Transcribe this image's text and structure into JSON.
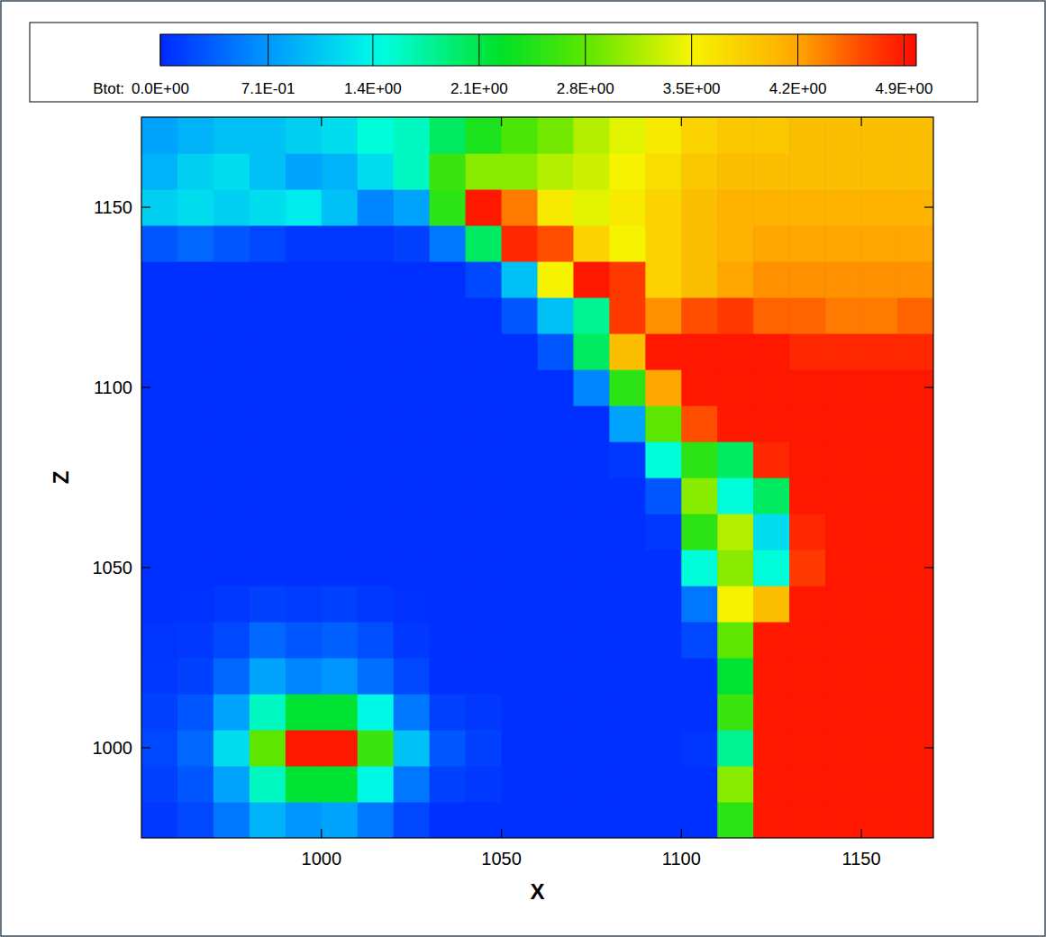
{
  "chart_data": {
    "type": "heatmap",
    "xlabel": "X",
    "ylabel": "Z",
    "xlim": [
      950,
      1170
    ],
    "ylim": [
      975,
      1175
    ],
    "xticks": [
      1000,
      1050,
      1100,
      1150
    ],
    "yticks": [
      1000,
      1050,
      1100,
      1150
    ],
    "x": [
      955,
      965,
      975,
      985,
      995,
      1005,
      1015,
      1025,
      1035,
      1045,
      1055,
      1065,
      1075,
      1085,
      1095,
      1105,
      1115,
      1125,
      1135,
      1145,
      1155,
      1165
    ],
    "y": [
      980,
      990,
      1000,
      1010,
      1020,
      1030,
      1040,
      1050,
      1060,
      1070,
      1080,
      1090,
      1100,
      1110,
      1120,
      1130,
      1140,
      1150,
      1160,
      1170
    ],
    "cells": [
      [
        0.1,
        0.2,
        0.5,
        0.9,
        0.7,
        0.8,
        0.5,
        0.2,
        0.05,
        0.05,
        0.05,
        0.05,
        0.05,
        0.05,
        0.05,
        0.05,
        2.5,
        4.9,
        4.9,
        4.9,
        4.9,
        4.9
      ],
      [
        0.15,
        0.3,
        0.8,
        1.6,
        2.2,
        2.2,
        1.4,
        0.5,
        0.15,
        0.1,
        0.05,
        0.05,
        0.05,
        0.05,
        0.05,
        0.05,
        3.0,
        4.9,
        4.9,
        4.9,
        4.9,
        4.9
      ],
      [
        0.2,
        0.4,
        1.2,
        2.8,
        4.9,
        4.9,
        2.6,
        1.0,
        0.3,
        0.15,
        0.05,
        0.05,
        0.05,
        0.05,
        0.05,
        0.08,
        1.8,
        4.9,
        4.9,
        4.9,
        4.9,
        4.9
      ],
      [
        0.15,
        0.3,
        0.8,
        1.6,
        2.2,
        2.2,
        1.4,
        0.5,
        0.15,
        0.1,
        0.05,
        0.05,
        0.05,
        0.05,
        0.05,
        0.05,
        2.6,
        4.9,
        4.9,
        4.9,
        4.9,
        4.9
      ],
      [
        0.1,
        0.15,
        0.4,
        0.8,
        0.6,
        0.7,
        0.45,
        0.2,
        0.05,
        0.05,
        0.05,
        0.05,
        0.05,
        0.05,
        0.05,
        0.05,
        2.2,
        4.9,
        4.9,
        4.9,
        4.9,
        4.9
      ],
      [
        0.08,
        0.1,
        0.2,
        0.4,
        0.3,
        0.35,
        0.25,
        0.1,
        0.05,
        0.05,
        0.05,
        0.05,
        0.05,
        0.05,
        0.05,
        0.2,
        2.8,
        4.9,
        4.9,
        4.9,
        4.9,
        4.9
      ],
      [
        0.05,
        0.06,
        0.1,
        0.15,
        0.12,
        0.15,
        0.1,
        0.06,
        0.05,
        0.05,
        0.05,
        0.05,
        0.05,
        0.05,
        0.05,
        0.5,
        3.5,
        4.0,
        4.9,
        4.9,
        4.9,
        4.9
      ],
      [
        0.05,
        0.05,
        0.05,
        0.05,
        0.05,
        0.05,
        0.05,
        0.05,
        0.05,
        0.05,
        0.05,
        0.05,
        0.05,
        0.05,
        0.05,
        1.5,
        3.0,
        1.5,
        4.7,
        4.9,
        4.9,
        4.9
      ],
      [
        0.05,
        0.05,
        0.05,
        0.05,
        0.05,
        0.05,
        0.05,
        0.05,
        0.05,
        0.05,
        0.05,
        0.05,
        0.05,
        0.05,
        0.1,
        2.5,
        3.2,
        1.2,
        4.8,
        4.9,
        4.9,
        4.9
      ],
      [
        0.05,
        0.05,
        0.05,
        0.05,
        0.05,
        0.05,
        0.05,
        0.05,
        0.05,
        0.05,
        0.05,
        0.05,
        0.05,
        0.05,
        0.3,
        3.0,
        1.5,
        2.0,
        4.9,
        4.9,
        4.9,
        4.9
      ],
      [
        0.05,
        0.05,
        0.05,
        0.05,
        0.05,
        0.05,
        0.05,
        0.05,
        0.05,
        0.05,
        0.05,
        0.05,
        0.05,
        0.1,
        1.5,
        2.5,
        2.0,
        4.8,
        4.9,
        4.9,
        4.9,
        4.9
      ],
      [
        0.05,
        0.05,
        0.05,
        0.05,
        0.05,
        0.05,
        0.05,
        0.05,
        0.05,
        0.05,
        0.05,
        0.05,
        0.05,
        0.8,
        2.8,
        4.6,
        4.9,
        4.9,
        4.9,
        4.9,
        4.9,
        4.9
      ],
      [
        0.05,
        0.05,
        0.05,
        0.05,
        0.05,
        0.05,
        0.05,
        0.05,
        0.05,
        0.05,
        0.05,
        0.05,
        0.6,
        2.5,
        4.2,
        4.9,
        4.9,
        4.9,
        4.9,
        4.9,
        4.9,
        4.9
      ],
      [
        0.05,
        0.05,
        0.05,
        0.05,
        0.05,
        0.05,
        0.05,
        0.05,
        0.05,
        0.05,
        0.05,
        0.3,
        2.0,
        4.0,
        4.9,
        4.9,
        4.9,
        4.9,
        4.8,
        4.8,
        4.8,
        4.8
      ],
      [
        0.05,
        0.05,
        0.05,
        0.05,
        0.05,
        0.05,
        0.05,
        0.05,
        0.05,
        0.05,
        0.3,
        1.0,
        1.8,
        4.7,
        4.3,
        4.6,
        4.7,
        4.5,
        4.5,
        4.4,
        4.4,
        4.5
      ],
      [
        0.05,
        0.05,
        0.05,
        0.05,
        0.05,
        0.05,
        0.05,
        0.05,
        0.05,
        0.2,
        1.0,
        3.5,
        4.9,
        4.7,
        3.8,
        4.0,
        4.2,
        4.3,
        4.3,
        4.3,
        4.3,
        4.3
      ],
      [
        0.3,
        0.4,
        0.3,
        0.2,
        0.1,
        0.1,
        0.1,
        0.15,
        0.5,
        2.0,
        4.8,
        4.6,
        3.8,
        3.5,
        3.8,
        4.0,
        4.1,
        4.2,
        4.2,
        4.2,
        4.2,
        4.2
      ],
      [
        1.1,
        1.2,
        1.1,
        1.2,
        1.3,
        1.0,
        0.6,
        0.8,
        2.5,
        4.9,
        4.4,
        3.6,
        3.4,
        3.6,
        3.8,
        4.0,
        4.1,
        4.1,
        4.1,
        4.1,
        4.1,
        4.1
      ],
      [
        0.9,
        1.1,
        1.2,
        1.0,
        0.8,
        0.9,
        1.2,
        1.6,
        2.6,
        3.0,
        3.0,
        3.2,
        3.3,
        3.5,
        3.7,
        3.9,
        4.0,
        4.0,
        4.0,
        4.0,
        4.0,
        4.0
      ],
      [
        0.8,
        0.9,
        1.0,
        1.0,
        1.1,
        1.2,
        1.5,
        1.6,
        2.0,
        2.4,
        2.7,
        2.9,
        3.2,
        3.4,
        3.6,
        3.8,
        3.9,
        3.9,
        4.0,
        4.0,
        4.0,
        4.0
      ]
    ],
    "colorbar_label": "Btot:",
    "color_range": [
      0,
      4.98
    ],
    "color_ticks": [
      {
        "value": 0,
        "label": "0.0E+00"
      },
      {
        "value": 0.71,
        "label": "7.1E-01"
      },
      {
        "value": 1.4,
        "label": "1.4E+00"
      },
      {
        "value": 2.1,
        "label": "2.1E+00"
      },
      {
        "value": 2.8,
        "label": "2.8E+00"
      },
      {
        "value": 3.5,
        "label": "3.5E+00"
      },
      {
        "value": 4.2,
        "label": "4.2E+00"
      },
      {
        "value": 4.9,
        "label": "4.9E+00"
      }
    ]
  }
}
